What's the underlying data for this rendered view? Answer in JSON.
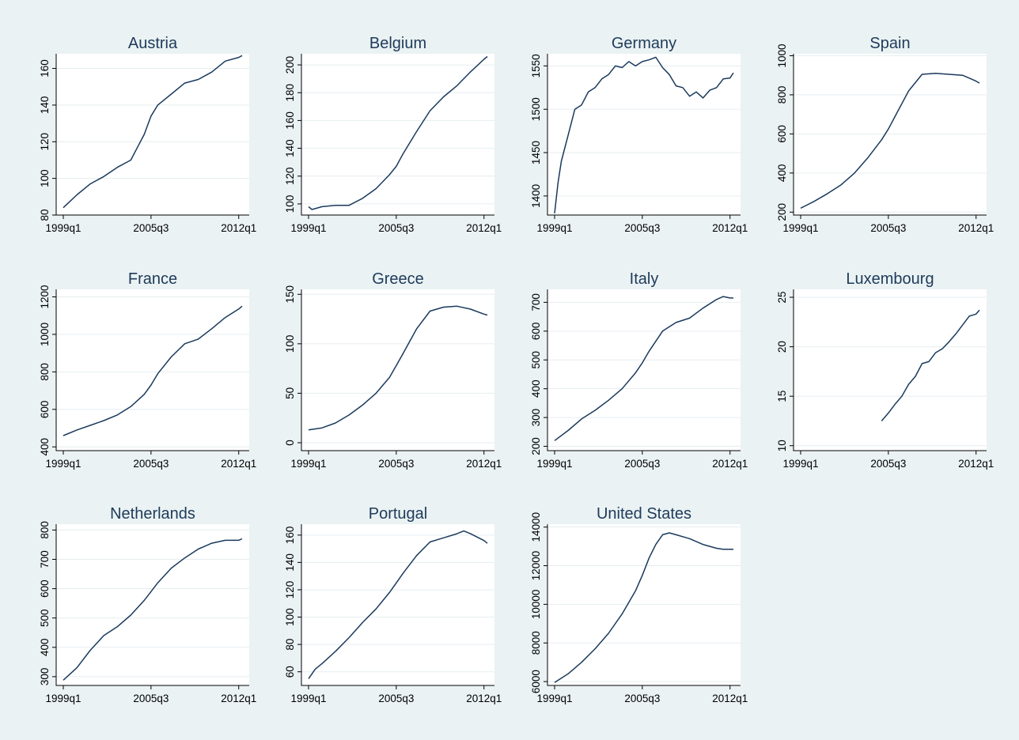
{
  "colors": {
    "background": "#eaf2f3",
    "plot_area": "#ffffff",
    "series": "#1a3a5c",
    "title": "#1e3a5a",
    "grid": "#e6eef0"
  },
  "chart_data": [
    {
      "type": "line",
      "title": "Austria",
      "x_ticks": [
        "1999q1",
        "2005q3",
        "2012q1"
      ],
      "xlim": [
        "1999q1",
        "2012q2"
      ],
      "ylim": [
        80,
        168
      ],
      "y_ticks": [
        80,
        100,
        120,
        140,
        160
      ],
      "grid": true,
      "x": [
        "1999q1",
        "2000q1",
        "2001q1",
        "2002q1",
        "2003q1",
        "2004q1",
        "2004q3",
        "2005q1",
        "2005q3",
        "2006q1",
        "2007q1",
        "2008q1",
        "2009q1",
        "2010q1",
        "2011q1",
        "2012q1",
        "2012q2"
      ],
      "values": [
        84,
        91,
        97,
        101,
        106,
        110,
        117,
        124,
        134,
        140,
        146,
        152,
        154,
        158,
        164,
        166,
        167
      ]
    },
    {
      "type": "line",
      "title": "Belgium",
      "x_ticks": [
        "1999q1",
        "2005q3",
        "2012q1"
      ],
      "xlim": [
        "1999q1",
        "2012q2"
      ],
      "ylim": [
        92,
        208
      ],
      "y_ticks": [
        100,
        120,
        140,
        160,
        180,
        200
      ],
      "grid": true,
      "x": [
        "1999q1",
        "1999q2",
        "2000q1",
        "2001q1",
        "2002q1",
        "2003q1",
        "2004q1",
        "2005q1",
        "2005q3",
        "2006q1",
        "2007q1",
        "2008q1",
        "2009q1",
        "2010q1",
        "2011q1",
        "2012q1",
        "2012q2"
      ],
      "values": [
        98,
        96,
        98,
        99,
        99,
        104,
        111,
        121,
        127,
        136,
        152,
        167,
        177,
        185,
        195,
        204,
        206
      ]
    },
    {
      "type": "line",
      "title": "Germany",
      "x_ticks": [
        "1999q1",
        "2005q3",
        "2012q1"
      ],
      "xlim": [
        "1999q1",
        "2012q2"
      ],
      "ylim": [
        1378,
        1564
      ],
      "y_ticks": [
        1400,
        1450,
        1500,
        1550
      ],
      "grid": true,
      "x": [
        "1999q1",
        "1999q2",
        "1999q3",
        "1999q4",
        "2000q1",
        "2000q3",
        "2001q1",
        "2001q3",
        "2002q1",
        "2002q3",
        "2003q1",
        "2003q3",
        "2004q1",
        "2004q3",
        "2005q1",
        "2005q3",
        "2006q1",
        "2006q3",
        "2007q1",
        "2007q3",
        "2008q1",
        "2008q3",
        "2009q1",
        "2009q3",
        "2010q1",
        "2010q3",
        "2011q1",
        "2011q3",
        "2012q1",
        "2012q2"
      ],
      "values": [
        1380,
        1415,
        1440,
        1455,
        1470,
        1500,
        1505,
        1520,
        1525,
        1535,
        1540,
        1550,
        1548,
        1555,
        1550,
        1555,
        1557,
        1560,
        1548,
        1540,
        1527,
        1525,
        1515,
        1520,
        1513,
        1522,
        1525,
        1535,
        1536,
        1542
      ]
    },
    {
      "type": "line",
      "title": "Spain",
      "x_ticks": [
        "1999q1",
        "2005q3",
        "2012q1"
      ],
      "xlim": [
        "1999q1",
        "2012q2"
      ],
      "ylim": [
        185,
        1010
      ],
      "y_ticks": [
        200,
        400,
        600,
        800,
        1000
      ],
      "grid": true,
      "x": [
        "1999q1",
        "2000q1",
        "2001q1",
        "2002q1",
        "2003q1",
        "2004q1",
        "2005q1",
        "2005q3",
        "2006q1",
        "2007q1",
        "2008q1",
        "2009q1",
        "2010q1",
        "2011q1",
        "2012q1",
        "2012q2"
      ],
      "values": [
        220,
        255,
        295,
        340,
        400,
        480,
        570,
        625,
        690,
        820,
        905,
        910,
        905,
        900,
        870,
        860
      ]
    },
    {
      "type": "line",
      "title": "France",
      "x_ticks": [
        "1999q1",
        "2005q3",
        "2012q1"
      ],
      "xlim": [
        "1999q1",
        "2012q2"
      ],
      "ylim": [
        380,
        1240
      ],
      "y_ticks": [
        400,
        600,
        800,
        1000,
        1200
      ],
      "grid": true,
      "x": [
        "1999q1",
        "2000q1",
        "2001q1",
        "2002q1",
        "2003q1",
        "2004q1",
        "2005q1",
        "2005q3",
        "2006q1",
        "2007q1",
        "2008q1",
        "2009q1",
        "2010q1",
        "2011q1",
        "2012q1",
        "2012q2"
      ],
      "values": [
        460,
        490,
        515,
        540,
        570,
        615,
        680,
        730,
        790,
        880,
        950,
        975,
        1030,
        1090,
        1135,
        1150
      ]
    },
    {
      "type": "line",
      "title": "Greece",
      "x_ticks": [
        "1999q1",
        "2005q3",
        "2012q1"
      ],
      "xlim": [
        "1999q1",
        "2012q2"
      ],
      "ylim": [
        -8,
        155
      ],
      "y_ticks": [
        0,
        50,
        100,
        150
      ],
      "grid": true,
      "x": [
        "1999q1",
        "2000q1",
        "2001q1",
        "2002q1",
        "2003q1",
        "2004q1",
        "2005q1",
        "2005q3",
        "2006q1",
        "2007q1",
        "2008q1",
        "2009q1",
        "2010q1",
        "2011q1",
        "2012q1",
        "2012q2"
      ],
      "values": [
        13,
        15,
        20,
        28,
        38,
        50,
        66,
        78,
        90,
        115,
        133,
        137,
        138,
        135,
        130,
        129
      ]
    },
    {
      "type": "line",
      "title": "Italy",
      "x_ticks": [
        "1999q1",
        "2005q3",
        "2012q1"
      ],
      "xlim": [
        "1999q1",
        "2012q2"
      ],
      "ylim": [
        185,
        745
      ],
      "y_ticks": [
        200,
        300,
        400,
        500,
        600,
        700
      ],
      "grid": true,
      "x": [
        "1999q1",
        "2000q1",
        "2001q1",
        "2002q1",
        "2003q1",
        "2004q1",
        "2005q1",
        "2005q3",
        "2006q1",
        "2007q1",
        "2008q1",
        "2009q1",
        "2010q1",
        "2011q1",
        "2011q3",
        "2012q1",
        "2012q2"
      ],
      "values": [
        220,
        255,
        295,
        325,
        360,
        400,
        455,
        490,
        530,
        600,
        630,
        645,
        680,
        710,
        720,
        715,
        715
      ]
    },
    {
      "type": "line",
      "title": "Luxembourg",
      "x_ticks": [
        "1999q1",
        "2005q3",
        "2012q1"
      ],
      "xlim": [
        "1999q1",
        "2012q2"
      ],
      "ylim": [
        9.5,
        25.8
      ],
      "y_ticks": [
        10,
        15,
        20,
        25
      ],
      "grid": true,
      "x": [
        "2005q1",
        "2005q3",
        "2006q1",
        "2006q3",
        "2007q1",
        "2007q3",
        "2008q1",
        "2008q3",
        "2009q1",
        "2009q3",
        "2010q1",
        "2010q3",
        "2011q1",
        "2011q3",
        "2012q1",
        "2012q2"
      ],
      "values": [
        12.5,
        13.3,
        14.2,
        15.0,
        16.2,
        17.0,
        18.3,
        18.5,
        19.4,
        19.8,
        20.5,
        21.3,
        22.2,
        23.1,
        23.3,
        23.7
      ]
    },
    {
      "type": "line",
      "title": "Netherlands",
      "x_ticks": [
        "1999q1",
        "2005q3",
        "2012q1"
      ],
      "xlim": [
        "1999q1",
        "2012q2"
      ],
      "ylim": [
        270,
        820
      ],
      "y_ticks": [
        300,
        400,
        500,
        600,
        700,
        800
      ],
      "grid": true,
      "x": [
        "1999q1",
        "2000q1",
        "2001q1",
        "2002q1",
        "2003q1",
        "2004q1",
        "2005q1",
        "2005q3",
        "2006q1",
        "2007q1",
        "2008q1",
        "2009q1",
        "2010q1",
        "2011q1",
        "2012q1",
        "2012q2"
      ],
      "values": [
        288,
        330,
        390,
        440,
        470,
        510,
        560,
        590,
        620,
        670,
        705,
        735,
        755,
        765,
        765,
        770
      ]
    },
    {
      "type": "line",
      "title": "Portugal",
      "x_ticks": [
        "1999q1",
        "2005q3",
        "2012q1"
      ],
      "xlim": [
        "1999q1",
        "2012q2"
      ],
      "ylim": [
        50,
        168
      ],
      "y_ticks": [
        60,
        80,
        100,
        120,
        140,
        160
      ],
      "grid": true,
      "x": [
        "1999q1",
        "1999q3",
        "2000q1",
        "2001q1",
        "2002q1",
        "2003q1",
        "2004q1",
        "2005q1",
        "2005q3",
        "2006q1",
        "2007q1",
        "2008q1",
        "2009q1",
        "2010q1",
        "2010q3",
        "2011q1",
        "2012q1",
        "2012q2"
      ],
      "values": [
        55,
        62,
        66,
        75,
        85,
        96,
        106,
        118,
        125,
        132,
        145,
        155,
        158,
        161,
        163,
        161,
        156,
        154
      ]
    },
    {
      "type": "line",
      "title": "United States",
      "x_ticks": [
        "1999q1",
        "2005q3",
        "2012q1"
      ],
      "xlim": [
        "1999q1",
        "2012q2"
      ],
      "ylim": [
        5800,
        14150
      ],
      "y_ticks": [
        6000,
        8000,
        10000,
        12000,
        14000
      ],
      "grid": true,
      "x": [
        "1999q1",
        "2000q1",
        "2001q1",
        "2002q1",
        "2003q1",
        "2004q1",
        "2005q1",
        "2005q3",
        "2006q1",
        "2006q3",
        "2007q1",
        "2007q3",
        "2008q1",
        "2009q1",
        "2010q1",
        "2011q1",
        "2011q3",
        "2012q1",
        "2012q2"
      ],
      "values": [
        5950,
        6400,
        7000,
        7700,
        8500,
        9500,
        10700,
        11500,
        12400,
        13100,
        13600,
        13700,
        13600,
        13400,
        13100,
        12900,
        12850,
        12850,
        12850
      ]
    }
  ]
}
